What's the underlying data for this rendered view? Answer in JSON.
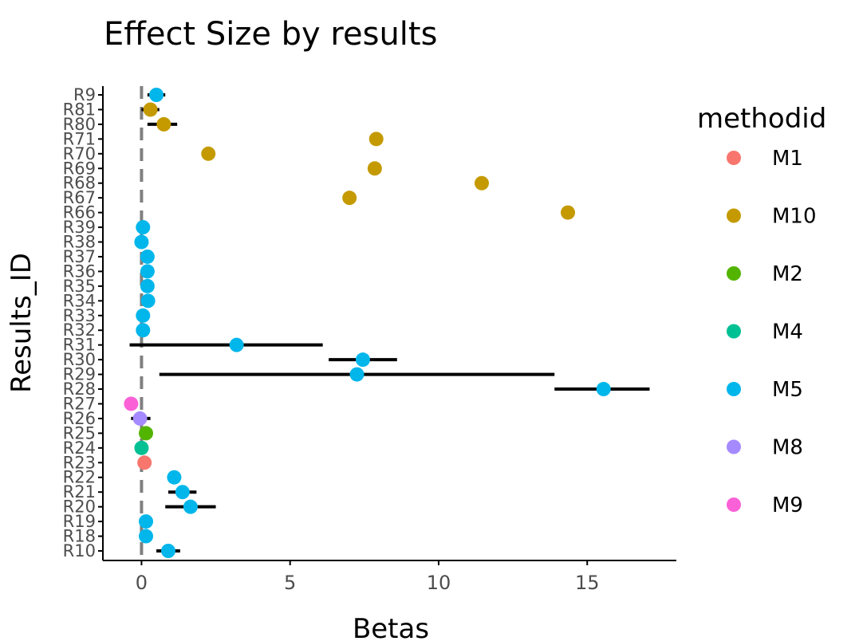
{
  "chart_data": {
    "type": "scatter",
    "title": "Effect Size by results",
    "xlabel": "Betas",
    "ylabel": "Results_ID",
    "xlim": [
      -1.3,
      18
    ],
    "x_ticks": [
      "0",
      "5",
      "10",
      "15"
    ],
    "grid": false,
    "reference_line": {
      "x": 0,
      "style": "dashed"
    },
    "legend": {
      "title": "methodid",
      "position": "right",
      "entries": [
        {
          "name": "M1",
          "color": "#F8766D"
        },
        {
          "name": "M10",
          "color": "#C49A00"
        },
        {
          "name": "M2",
          "color": "#53B400"
        },
        {
          "name": "M4",
          "color": "#00C094"
        },
        {
          "name": "M5",
          "color": "#00B6EB"
        },
        {
          "name": "M8",
          "color": "#A58AFF"
        },
        {
          "name": "M9",
          "color": "#FB61D7"
        }
      ]
    },
    "categories": [
      "R10",
      "R18",
      "R19",
      "R20",
      "R21",
      "R22",
      "R23",
      "R24",
      "R25",
      "R26",
      "R27",
      "R28",
      "R29",
      "R30",
      "R31",
      "R32",
      "R33",
      "R34",
      "R35",
      "R36",
      "R37",
      "R38",
      "R39",
      "R66",
      "R67",
      "R68",
      "R69",
      "R70",
      "R71",
      "R80",
      "R81",
      "R9"
    ],
    "points": [
      {
        "id": "R10",
        "x": 0.9,
        "lo": 0.5,
        "hi": 1.3,
        "method": "M5"
      },
      {
        "id": "R18",
        "x": 0.15,
        "lo": 0.05,
        "hi": 0.25,
        "method": "M5"
      },
      {
        "id": "R19",
        "x": 0.15,
        "lo": 0.05,
        "hi": 0.25,
        "method": "M5"
      },
      {
        "id": "R20",
        "x": 1.65,
        "lo": 0.8,
        "hi": 2.5,
        "method": "M5"
      },
      {
        "id": "R21",
        "x": 1.38,
        "lo": 0.9,
        "hi": 1.85,
        "method": "M5"
      },
      {
        "id": "R22",
        "x": 1.1,
        "lo": 1.1,
        "hi": 1.1,
        "method": "M5"
      },
      {
        "id": "R23",
        "x": 0.1,
        "lo": 0.05,
        "hi": 0.15,
        "method": "M1"
      },
      {
        "id": "R24",
        "x": 0.0,
        "lo": -0.1,
        "hi": 0.1,
        "method": "M4"
      },
      {
        "id": "R25",
        "x": 0.15,
        "lo": 0.1,
        "hi": 0.2,
        "method": "M2"
      },
      {
        "id": "R26",
        "x": -0.05,
        "lo": -0.35,
        "hi": 0.3,
        "method": "M8"
      },
      {
        "id": "R27",
        "x": -0.35,
        "lo": -0.35,
        "hi": -0.35,
        "method": "M9"
      },
      {
        "id": "R28",
        "x": 15.55,
        "lo": 13.9,
        "hi": 17.1,
        "method": "M5"
      },
      {
        "id": "R29",
        "x": 7.25,
        "lo": 0.6,
        "hi": 13.9,
        "method": "M5"
      },
      {
        "id": "R30",
        "x": 7.45,
        "lo": 6.3,
        "hi": 8.6,
        "method": "M5"
      },
      {
        "id": "R31",
        "x": 3.2,
        "lo": -0.4,
        "hi": 6.1,
        "method": "M5"
      },
      {
        "id": "R32",
        "x": 0.05,
        "lo": -0.05,
        "hi": 0.15,
        "method": "M5"
      },
      {
        "id": "R33",
        "x": 0.05,
        "lo": -0.05,
        "hi": 0.15,
        "method": "M5"
      },
      {
        "id": "R34",
        "x": 0.22,
        "lo": 0.1,
        "hi": 0.35,
        "method": "M5"
      },
      {
        "id": "R35",
        "x": 0.2,
        "lo": 0.1,
        "hi": 0.3,
        "method": "M5"
      },
      {
        "id": "R36",
        "x": 0.2,
        "lo": 0.1,
        "hi": 0.3,
        "method": "M5"
      },
      {
        "id": "R37",
        "x": 0.2,
        "lo": 0.1,
        "hi": 0.3,
        "method": "M5"
      },
      {
        "id": "R38",
        "x": 0.0,
        "lo": -0.1,
        "hi": 0.1,
        "method": "M5"
      },
      {
        "id": "R39",
        "x": 0.05,
        "lo": -0.1,
        "hi": 0.2,
        "method": "M5"
      },
      {
        "id": "R66",
        "x": 14.35,
        "lo": 14.35,
        "hi": 14.35,
        "method": "M10"
      },
      {
        "id": "R67",
        "x": 7.0,
        "lo": 7.0,
        "hi": 7.0,
        "method": "M10"
      },
      {
        "id": "R68",
        "x": 11.45,
        "lo": 11.45,
        "hi": 11.45,
        "method": "M10"
      },
      {
        "id": "R69",
        "x": 7.85,
        "lo": 7.85,
        "hi": 7.85,
        "method": "M10"
      },
      {
        "id": "R70",
        "x": 2.25,
        "lo": 2.25,
        "hi": 2.25,
        "method": "M10"
      },
      {
        "id": "R71",
        "x": 7.9,
        "lo": 7.9,
        "hi": 7.9,
        "method": "M10"
      },
      {
        "id": "R80",
        "x": 0.75,
        "lo": 0.2,
        "hi": 1.2,
        "method": "M10"
      },
      {
        "id": "R81",
        "x": 0.3,
        "lo": 0.0,
        "hi": 0.6,
        "method": "M10"
      },
      {
        "id": "R9",
        "x": 0.5,
        "lo": 0.2,
        "hi": 0.8,
        "method": "M5"
      }
    ]
  }
}
